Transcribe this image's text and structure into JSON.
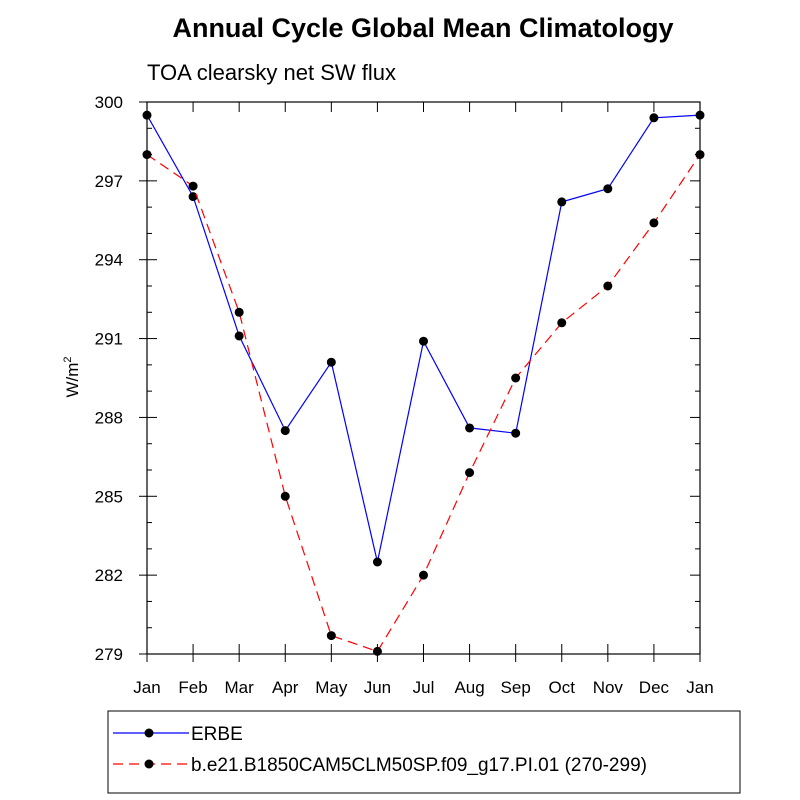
{
  "chart_data": {
    "type": "line",
    "title": "Annual Cycle Global Mean Climatology",
    "subtitle": "TOA clearsky net SW flux",
    "ylabel": "W/m",
    "ylabel_superscript": "2",
    "xlabel": "",
    "categories": [
      "Jan",
      "Feb",
      "Mar",
      "Apr",
      "May",
      "Jun",
      "Jul",
      "Aug",
      "Sep",
      "Oct",
      "Nov",
      "Dec",
      "Jan"
    ],
    "ylim": [
      279,
      300
    ],
    "yticks": [
      279,
      282,
      285,
      288,
      291,
      294,
      297,
      300
    ],
    "grid": false,
    "legend_position": "bottom",
    "series": [
      {
        "name": "ERBE",
        "color": "#0000ff",
        "line_style": "solid",
        "marker": "filled-circle",
        "values": [
          299.5,
          296.4,
          291.1,
          287.5,
          290.1,
          282.5,
          290.9,
          287.6,
          287.4,
          296.2,
          296.7,
          299.4,
          299.5
        ]
      },
      {
        "name": "b.e21.B1850CAM5CLM50SP.f09_g17.PI.01 (270-299)",
        "color": "#ff0000",
        "line_style": "dashed",
        "marker": "filled-circle",
        "values": [
          298.0,
          296.8,
          292.0,
          285.0,
          279.7,
          279.1,
          282.0,
          285.9,
          289.5,
          291.6,
          293.0,
          295.4,
          298.0
        ]
      }
    ]
  }
}
